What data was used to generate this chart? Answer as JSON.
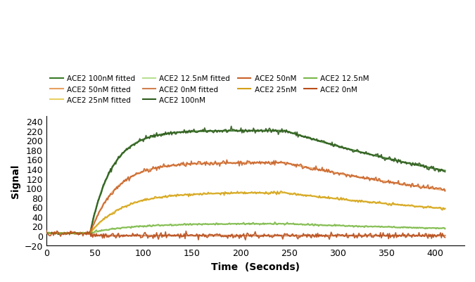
{
  "title": "",
  "xlabel": "Time  (Seconds)",
  "ylabel": "Signal",
  "xlim": [
    0,
    430
  ],
  "ylim": [
    -20,
    250
  ],
  "yticks": [
    -20,
    0,
    20,
    40,
    60,
    80,
    100,
    120,
    140,
    160,
    180,
    200,
    220,
    240
  ],
  "xticks": [
    0,
    50,
    100,
    150,
    200,
    250,
    300,
    350,
    400
  ],
  "colors": {
    "100nM": "#2d5a1b",
    "50nM": "#c8622a",
    "25nM": "#d4a017",
    "12.5nM": "#7ab648",
    "0nM": "#b84c1a",
    "100nM_fitted": "#3a7a28",
    "50nM_fitted": "#e8a060",
    "25nM_fitted": "#e8d060",
    "12.5nM_fitted": "#b8e090",
    "0nM_fitted": "#d08050"
  },
  "association_start": 45,
  "association_end": 245,
  "dissociation_end": 410
}
